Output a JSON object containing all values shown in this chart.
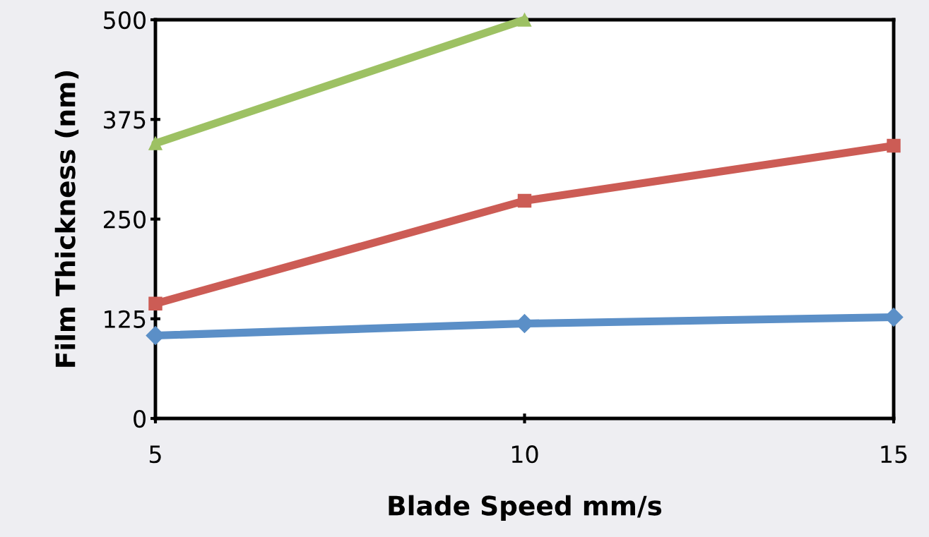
{
  "chart_data": {
    "type": "line",
    "xlabel": "Blade Speed mm/s",
    "ylabel": "Film Thickness (nm)",
    "x": [
      5,
      10,
      15
    ],
    "series": [
      {
        "color": "#5b8fc7",
        "values": [
          104,
          119,
          127
        ],
        "marker": "diamond"
      },
      {
        "color": "#cc5c55",
        "values": [
          144,
          273,
          342
        ],
        "marker": "square"
      },
      {
        "color": "#9dc163",
        "values": [
          345,
          500,
          null
        ],
        "marker": "triangle"
      }
    ],
    "xlim": [
      5,
      15
    ],
    "xticks": [
      5,
      10,
      15
    ],
    "ylim": [
      0,
      500
    ],
    "yticks": [
      0,
      125,
      250,
      375,
      500
    ],
    "grid": false,
    "legend": false,
    "line_style": "solid"
  }
}
